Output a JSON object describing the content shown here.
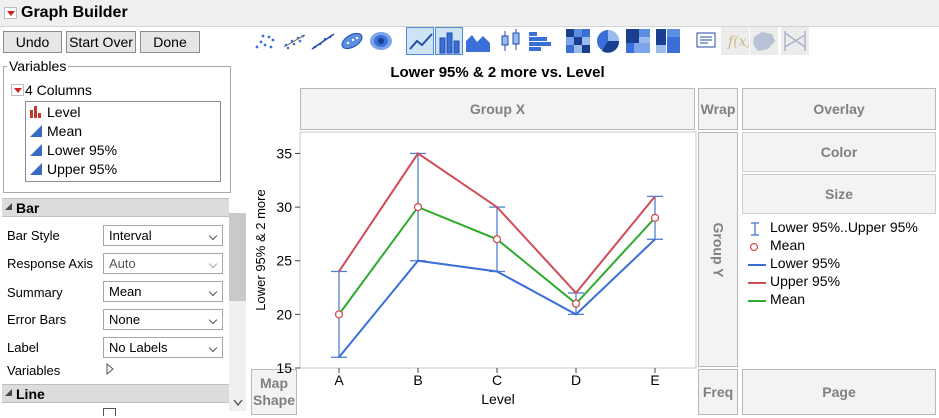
{
  "app": {
    "title": "Graph Builder"
  },
  "buttons": {
    "undo": "Undo",
    "start_over": "Start Over",
    "done": "Done"
  },
  "variables": {
    "legend": "Variables",
    "columns_label": "4 Columns",
    "items": [
      {
        "label": "Level",
        "type": "nominal",
        "color": "#c0392b"
      },
      {
        "label": "Mean",
        "type": "continuous",
        "color": "#3a6bc4"
      },
      {
        "label": "Lower 95%",
        "type": "continuous",
        "color": "#3a6bc4"
      },
      {
        "label": "Upper 95%",
        "type": "continuous",
        "color": "#3a6bc4"
      }
    ]
  },
  "bar_section": {
    "title": "Bar",
    "props": [
      {
        "label": "Bar Style",
        "value": "Interval",
        "enabled": true
      },
      {
        "label": "Response Axis",
        "value": "Auto",
        "enabled": false
      },
      {
        "label": "Summary",
        "value": "Mean",
        "enabled": true
      },
      {
        "label": "Error Bars",
        "value": "None",
        "enabled": true
      },
      {
        "label": "Label",
        "value": "No Labels",
        "enabled": true
      }
    ],
    "variables_label": "Variables"
  },
  "line_section": {
    "title": "Line"
  },
  "zones": {
    "group_x": "Group X",
    "group_y": "Group Y",
    "wrap": "Wrap",
    "overlay": "Overlay",
    "color": "Color",
    "size": "Size",
    "map_shape": "Map Shape",
    "freq": "Freq",
    "page": "Page"
  },
  "legend": {
    "items": [
      {
        "label": "Lower 95%..Upper 95%",
        "kind": "errorbar",
        "color": "#4f7fd6"
      },
      {
        "label": "Mean",
        "kind": "circle",
        "color": "#d0504c"
      },
      {
        "label": "Lower 95%",
        "kind": "line",
        "color": "#3a6fd8"
      },
      {
        "label": "Upper 95%",
        "kind": "line",
        "color": "#d04b55"
      },
      {
        "label": "Mean",
        "kind": "line",
        "color": "#2eaa2e"
      }
    ]
  },
  "toolbar": {
    "icons": [
      "points-icon",
      "jitter-points-icon",
      "smoother-icon",
      "ellipse-icon",
      "contour-icon",
      "line-icon",
      "bar-icon",
      "area-icon",
      "box-plot-icon",
      "histogram-icon",
      "heatmap-icon",
      "pie-icon",
      "treemap-icon",
      "mosaic-icon",
      "caption-box-icon",
      "formula-icon",
      "map-shapes-icon",
      "parallel-icon"
    ]
  },
  "chart_data": {
    "type": "line",
    "title": "Lower 95% & 2 more vs. Level",
    "xlabel": "Level",
    "ylabel": "Lower 95% & 2 more",
    "categories": [
      "A",
      "B",
      "C",
      "D",
      "E"
    ],
    "ylim": [
      15,
      37
    ],
    "yticks": [
      15,
      20,
      25,
      30,
      35
    ],
    "grid": false,
    "legend_position": "right",
    "series": [
      {
        "name": "Lower 95%",
        "color": "#3a6fd8",
        "values": [
          16,
          25,
          24,
          20,
          27
        ]
      },
      {
        "name": "Upper 95%",
        "color": "#d04b55",
        "values": [
          24,
          35,
          30,
          22,
          31
        ]
      },
      {
        "name": "Mean",
        "color": "#2eaa2e",
        "values": [
          20,
          30,
          27,
          21,
          29
        ]
      }
    ],
    "error_bars": {
      "name": "Lower 95%..Upper 95%",
      "color": "#4f7fd6",
      "low": [
        16,
        25,
        24,
        20,
        27
      ],
      "high": [
        24,
        35,
        30,
        22,
        31
      ]
    },
    "markers": {
      "name": "Mean",
      "color": "#d0504c",
      "values": [
        20,
        30,
        27,
        21,
        29
      ]
    }
  }
}
